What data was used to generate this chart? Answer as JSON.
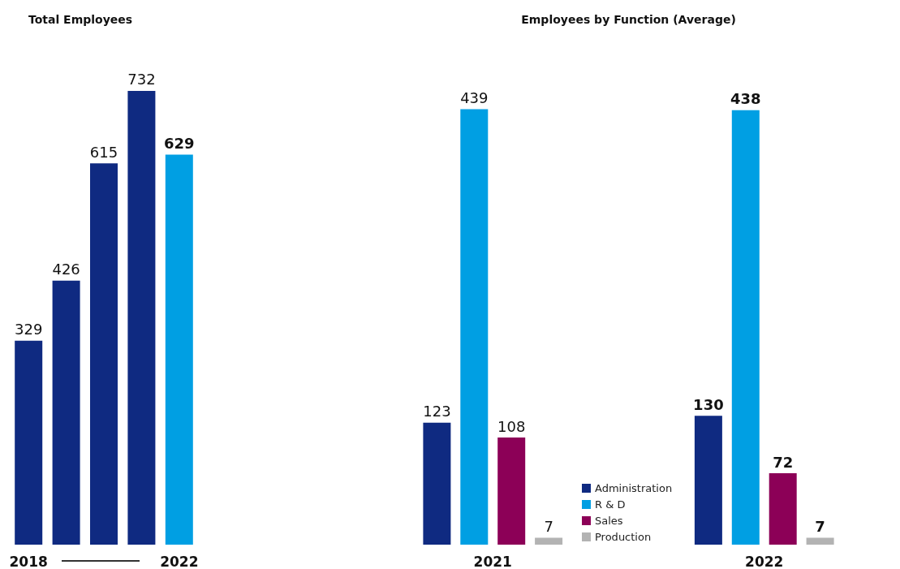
{
  "chart_data": [
    {
      "type": "bar",
      "title": "Total Employees",
      "categories": [
        "2018",
        null,
        null,
        null,
        "2022"
      ],
      "values": [
        329,
        426,
        615,
        732,
        629
      ],
      "colors": [
        "#0f2a81",
        "#0f2a81",
        "#0f2a81",
        "#0f2a81",
        "#009fe3"
      ],
      "data_labels": true
    },
    {
      "type": "bar",
      "title": "Employees by Function (Average)",
      "categories": [
        "2021",
        "2022"
      ],
      "series": [
        {
          "name": "Administration",
          "color": "#0f2a81",
          "values": [
            123,
            130
          ]
        },
        {
          "name": "R & D",
          "color": "#009fe3",
          "values": [
            439,
            438
          ]
        },
        {
          "name": "Sales",
          "color": "#8c0057",
          "values": [
            108,
            72
          ]
        },
        {
          "name": "Production",
          "color": "#b3b3b3",
          "values": [
            7,
            7
          ]
        }
      ],
      "data_labels": true,
      "legend": "bottom"
    }
  ]
}
